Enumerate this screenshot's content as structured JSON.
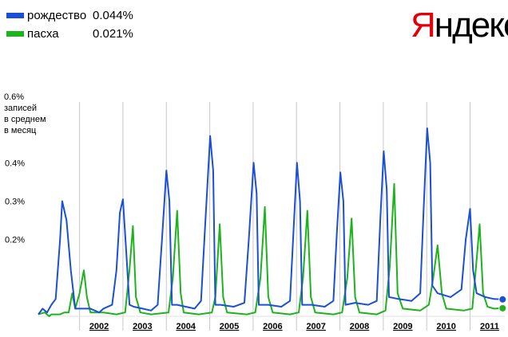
{
  "legend": [
    {
      "name": "рождество",
      "value": "0.044%",
      "color": "#1a4fd6"
    },
    {
      "name": "пасха",
      "value": "0.021%",
      "color": "#1db31d"
    }
  ],
  "logo": {
    "first": "Я",
    "rest": "ндекс"
  },
  "ylabel": {
    "value": "0.6%",
    "line1": "записей",
    "line2": "в среднем",
    "line3": "в месяц"
  },
  "chart_data": {
    "type": "line",
    "ylim": [
      0,
      0.6
    ],
    "yticks": [
      {
        "value": 0.4,
        "label": "0.4%"
      },
      {
        "value": 0.3,
        "label": "0.3%"
      },
      {
        "value": 0.2,
        "label": "0.2%"
      }
    ],
    "years": [
      "2002",
      "2003",
      "2004",
      "2005",
      "2006",
      "2007",
      "2008",
      "2009",
      "2010",
      "2011"
    ],
    "series": [
      {
        "name": "рождество",
        "color": "#1a4fd6",
        "points": [
          [
            2001.0,
            0.005
          ],
          [
            2001.1,
            0.02
          ],
          [
            2001.2,
            0.01
          ],
          [
            2001.3,
            0.03
          ],
          [
            2001.4,
            0.045
          ],
          [
            2001.5,
            0.2
          ],
          [
            2001.55,
            0.3
          ],
          [
            2001.65,
            0.25
          ],
          [
            2001.75,
            0.12
          ],
          [
            2001.85,
            0.02
          ],
          [
            2001.95,
            0.02
          ],
          [
            2002.2,
            0.02
          ],
          [
            2002.4,
            0.01
          ],
          [
            2002.5,
            0.02
          ],
          [
            2002.7,
            0.03
          ],
          [
            2002.8,
            0.12
          ],
          [
            2002.88,
            0.27
          ],
          [
            2002.95,
            0.305
          ],
          [
            2003.02,
            0.18
          ],
          [
            2003.1,
            0.03
          ],
          [
            2003.2,
            0.025
          ],
          [
            2003.4,
            0.02
          ],
          [
            2003.6,
            0.015
          ],
          [
            2003.75,
            0.03
          ],
          [
            2003.85,
            0.2
          ],
          [
            2003.95,
            0.38
          ],
          [
            2004.02,
            0.3
          ],
          [
            2004.08,
            0.03
          ],
          [
            2004.2,
            0.03
          ],
          [
            2004.4,
            0.025
          ],
          [
            2004.6,
            0.02
          ],
          [
            2004.75,
            0.04
          ],
          [
            2004.85,
            0.25
          ],
          [
            2004.96,
            0.47
          ],
          [
            2005.03,
            0.38
          ],
          [
            2005.08,
            0.03
          ],
          [
            2005.2,
            0.03
          ],
          [
            2005.5,
            0.025
          ],
          [
            2005.75,
            0.035
          ],
          [
            2005.85,
            0.2
          ],
          [
            2005.96,
            0.4
          ],
          [
            2006.03,
            0.32
          ],
          [
            2006.08,
            0.03
          ],
          [
            2006.3,
            0.03
          ],
          [
            2006.6,
            0.025
          ],
          [
            2006.8,
            0.04
          ],
          [
            2006.88,
            0.22
          ],
          [
            2006.96,
            0.4
          ],
          [
            2007.03,
            0.3
          ],
          [
            2007.08,
            0.03
          ],
          [
            2007.3,
            0.03
          ],
          [
            2007.6,
            0.025
          ],
          [
            2007.8,
            0.04
          ],
          [
            2007.88,
            0.22
          ],
          [
            2007.96,
            0.375
          ],
          [
            2008.03,
            0.3
          ],
          [
            2008.08,
            0.03
          ],
          [
            2008.3,
            0.035
          ],
          [
            2008.6,
            0.03
          ],
          [
            2008.8,
            0.04
          ],
          [
            2008.88,
            0.25
          ],
          [
            2008.96,
            0.43
          ],
          [
            2009.03,
            0.33
          ],
          [
            2009.08,
            0.05
          ],
          [
            2009.3,
            0.045
          ],
          [
            2009.6,
            0.04
          ],
          [
            2009.8,
            0.06
          ],
          [
            2009.88,
            0.28
          ],
          [
            2009.96,
            0.49
          ],
          [
            2010.03,
            0.4
          ],
          [
            2010.08,
            0.08
          ],
          [
            2010.2,
            0.06
          ],
          [
            2010.5,
            0.05
          ],
          [
            2010.75,
            0.07
          ],
          [
            2010.85,
            0.2
          ],
          [
            2010.95,
            0.28
          ],
          [
            2011.02,
            0.12
          ],
          [
            2011.1,
            0.06
          ],
          [
            2011.3,
            0.05
          ],
          [
            2011.5,
            0.045
          ],
          [
            2011.7,
            0.044
          ]
        ]
      },
      {
        "name": "пасха",
        "color": "#1db31d",
        "points": [
          [
            2001.0,
            0.005
          ],
          [
            2001.15,
            0.01
          ],
          [
            2001.25,
            0.0
          ],
          [
            2001.3,
            0.005
          ],
          [
            2001.5,
            0.005
          ],
          [
            2001.6,
            0.01
          ],
          [
            2001.7,
            0.01
          ],
          [
            2001.78,
            0.06
          ],
          [
            2001.85,
            0.02
          ],
          [
            2001.95,
            0.06
          ],
          [
            2002.05,
            0.12
          ],
          [
            2002.12,
            0.05
          ],
          [
            2002.2,
            0.01
          ],
          [
            2002.5,
            0.01
          ],
          [
            2002.8,
            0.005
          ],
          [
            2003.0,
            0.01
          ],
          [
            2003.1,
            0.12
          ],
          [
            2003.18,
            0.235
          ],
          [
            2003.25,
            0.05
          ],
          [
            2003.35,
            0.01
          ],
          [
            2003.6,
            0.005
          ],
          [
            2004.0,
            0.01
          ],
          [
            2004.1,
            0.1
          ],
          [
            2004.2,
            0.275
          ],
          [
            2004.28,
            0.06
          ],
          [
            2004.35,
            0.01
          ],
          [
            2004.7,
            0.005
          ],
          [
            2005.0,
            0.01
          ],
          [
            2005.08,
            0.05
          ],
          [
            2005.18,
            0.24
          ],
          [
            2005.26,
            0.05
          ],
          [
            2005.35,
            0.01
          ],
          [
            2005.8,
            0.005
          ],
          [
            2006.0,
            0.01
          ],
          [
            2006.12,
            0.1
          ],
          [
            2006.22,
            0.285
          ],
          [
            2006.3,
            0.05
          ],
          [
            2006.4,
            0.01
          ],
          [
            2006.8,
            0.005
          ],
          [
            2007.0,
            0.01
          ],
          [
            2007.1,
            0.1
          ],
          [
            2007.2,
            0.275
          ],
          [
            2007.28,
            0.05
          ],
          [
            2007.38,
            0.01
          ],
          [
            2007.8,
            0.005
          ],
          [
            2008.0,
            0.01
          ],
          [
            2008.12,
            0.1
          ],
          [
            2008.22,
            0.255
          ],
          [
            2008.3,
            0.05
          ],
          [
            2008.4,
            0.01
          ],
          [
            2008.8,
            0.005
          ],
          [
            2009.0,
            0.015
          ],
          [
            2009.1,
            0.13
          ],
          [
            2009.2,
            0.345
          ],
          [
            2009.28,
            0.06
          ],
          [
            2009.4,
            0.02
          ],
          [
            2009.8,
            0.015
          ],
          [
            2010.0,
            0.03
          ],
          [
            2010.1,
            0.1
          ],
          [
            2010.2,
            0.185
          ],
          [
            2010.3,
            0.06
          ],
          [
            2010.4,
            0.02
          ],
          [
            2010.8,
            0.015
          ],
          [
            2011.0,
            0.02
          ],
          [
            2011.08,
            0.12
          ],
          [
            2011.17,
            0.24
          ],
          [
            2011.25,
            0.06
          ],
          [
            2011.35,
            0.025
          ],
          [
            2011.5,
            0.02
          ],
          [
            2011.7,
            0.021
          ]
        ]
      }
    ]
  }
}
